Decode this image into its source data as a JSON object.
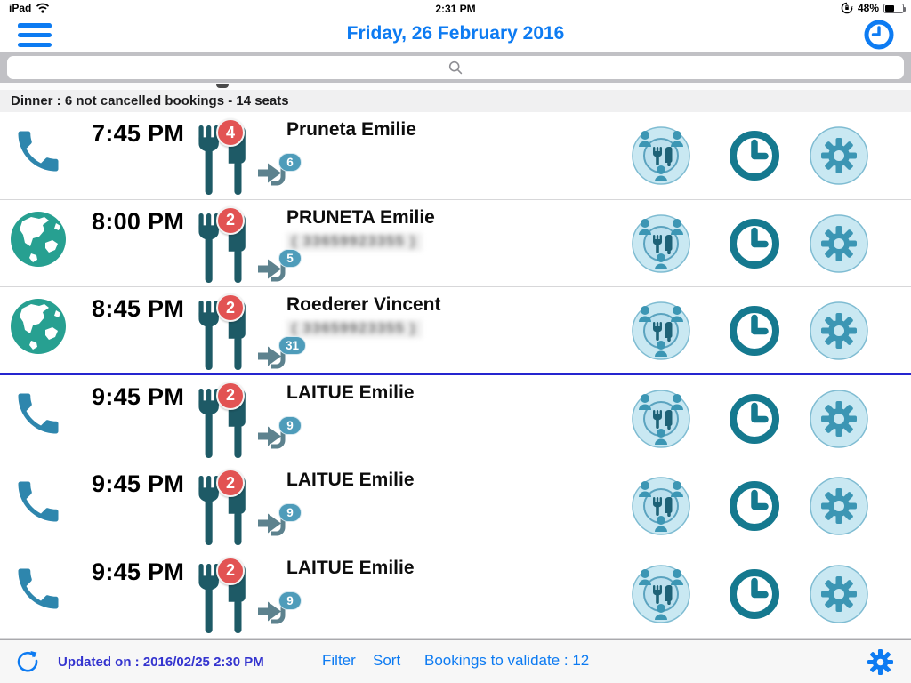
{
  "status_bar": {
    "device": "iPad",
    "time": "2:31 PM",
    "battery_percent": "48%"
  },
  "header": {
    "title": "Friday, 26 February 2016"
  },
  "search": {
    "placeholder": ""
  },
  "section_header": {
    "text": "Dinner : 6 not cancelled bookings - 14 seats"
  },
  "rows": [
    {
      "channel": "phone",
      "time": "7:45 PM",
      "covers": "4",
      "name": "Pruneta Emilie",
      "phone": "",
      "arrow_count": "6",
      "highlight_after": false
    },
    {
      "channel": "web",
      "time": "8:00 PM",
      "covers": "2",
      "name": "PRUNETA Emilie",
      "phone": "( 33659923355 )",
      "arrow_count": "5",
      "highlight_after": false
    },
    {
      "channel": "web",
      "time": "8:45 PM",
      "covers": "2",
      "name": "Roederer Vincent",
      "phone": "( 33659923355 )",
      "arrow_count": "31",
      "highlight_after": true
    },
    {
      "channel": "phone",
      "time": "9:45 PM",
      "covers": "2",
      "name": "LAITUE Emilie",
      "phone": "",
      "arrow_count": "9",
      "highlight_after": false
    },
    {
      "channel": "phone",
      "time": "9:45 PM",
      "covers": "2",
      "name": "LAITUE Emilie",
      "phone": "",
      "arrow_count": "9",
      "highlight_after": false
    },
    {
      "channel": "phone",
      "time": "9:45 PM",
      "covers": "2",
      "name": "LAITUE Emilie",
      "phone": "",
      "arrow_count": "9",
      "highlight_after": false
    }
  ],
  "footer": {
    "updated_label": "Updated on : 2016/02/25",
    "updated_time": "2:30 PM",
    "filter": "Filter",
    "sort": "Sort",
    "validate": "Bookings to validate : 12"
  },
  "icons": {
    "hamburger": "menu-icon",
    "history": "history-clock-icon",
    "search": "search-icon",
    "phone": "phone-icon",
    "globe": "globe-icon",
    "covers": "fork-knife-icon",
    "arrow": "enter-arrow-icon",
    "table": "table-seating-icon",
    "clock": "time-icon",
    "gear": "settings-gear-icon",
    "refresh": "refresh-icon"
  },
  "colors": {
    "ios_blue": "#0d7bf2",
    "teal_dark": "#1e5a66",
    "teal_mid": "#15798f",
    "teal_icon": "#3c96b4",
    "phone_icon": "#2e86ad",
    "globe_icon": "#27a091",
    "badge_red": "#e25353",
    "pill_blue": "#4e9cba",
    "highlight_line": "#2525cf",
    "updated_text": "#3434cf",
    "action_circle_bg": "#c9e8f2"
  }
}
